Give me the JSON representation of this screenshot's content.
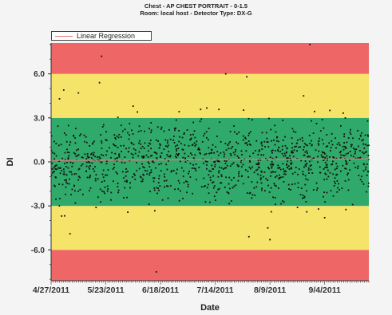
{
  "chart_data": {
    "type": "scatter",
    "title": "Chest  - AP CHEST PORTRAIT - 0-1.5",
    "subtitle": "Room: local host  - Detector Type: DX-G",
    "xlabel": "Date",
    "ylabel": "DI",
    "x_tick_labels": [
      "4/27/2011",
      "5/23/2011",
      "6/18/2011",
      "7/14/2011",
      "8/9/2011",
      "9/4/2011"
    ],
    "y_tick_labels": [
      "6.0",
      "3.0",
      "0.0",
      "-3.0",
      "-6.0"
    ],
    "y_ticks": [
      6,
      3,
      0,
      -3,
      -6
    ],
    "x_range": [
      "2011-04-27",
      "2011-09-25"
    ],
    "ylim": [
      -8.1,
      8.1
    ],
    "bands": [
      {
        "from": -8.1,
        "to": -6.0,
        "color": "#ee6666"
      },
      {
        "from": -6.0,
        "to": -3.0,
        "color": "#f5e36a"
      },
      {
        "from": -3.0,
        "to": 3.0,
        "color": "#2faa6b"
      },
      {
        "from": 3.0,
        "to": 6.0,
        "color": "#f5e36a"
      },
      {
        "from": 6.0,
        "to": 8.1,
        "color": "#ee6666"
      }
    ],
    "regression": {
      "name": "Linear Regression",
      "y_start": 0.1,
      "y_end": 0.2,
      "color": "#e07a7a"
    },
    "legend": {
      "position": "top-left",
      "entries": [
        "Linear Regression"
      ]
    },
    "point_color": "#111111",
    "notable_points": [
      {
        "x": "2011-05-01",
        "y": 4.3
      },
      {
        "x": "2011-05-03",
        "y": 4.9
      },
      {
        "x": "2011-05-06",
        "y": -4.9
      },
      {
        "x": "2011-05-10",
        "y": 4.7
      },
      {
        "x": "2011-05-20",
        "y": 5.4
      },
      {
        "x": "2011-05-21",
        "y": 7.2
      },
      {
        "x": "2011-06-05",
        "y": 3.8
      },
      {
        "x": "2011-06-16",
        "y": -7.5
      },
      {
        "x": "2011-07-19",
        "y": 6.0
      },
      {
        "x": "2011-07-29",
        "y": 5.8
      },
      {
        "x": "2011-07-30",
        "y": -5.1
      },
      {
        "x": "2011-08-08",
        "y": -4.5
      },
      {
        "x": "2011-08-09",
        "y": -5.3
      },
      {
        "x": "2011-08-25",
        "y": 4.5
      },
      {
        "x": "2011-08-28",
        "y": 8.0
      },
      {
        "x": "2011-09-04",
        "y": -3.8
      }
    ]
  }
}
